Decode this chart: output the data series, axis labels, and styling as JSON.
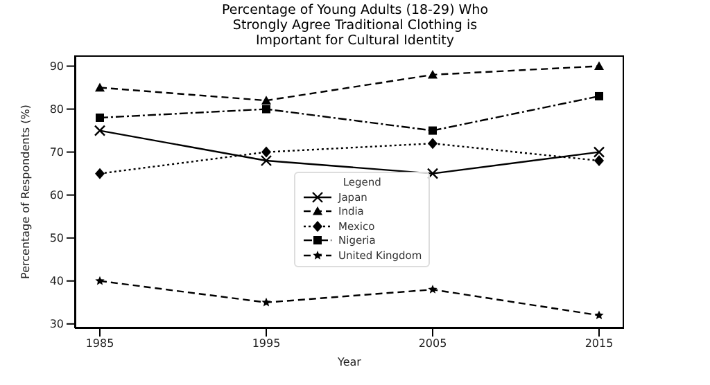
{
  "chart_data": {
    "type": "line",
    "title": "Percentage of Young Adults (18-29) Who\nStrongly Agree Traditional Clothing is\nImportant for Cultural Identity",
    "xlabel": "Year",
    "ylabel": "Percentage of Respondents (%)",
    "legend_title": "Legend",
    "legend": "bottom",
    "grid": false,
    "x": [
      1985,
      1995,
      2005,
      2015
    ],
    "xlim": [
      1983.5,
      2016.5
    ],
    "xticks": [
      1985,
      1995,
      2005,
      2015
    ],
    "ylim": [
      29,
      92.5
    ],
    "yticks": [
      30,
      40,
      50,
      60,
      70,
      80,
      90
    ],
    "series": [
      {
        "name": "Japan",
        "color": "#000000",
        "marker": "cross",
        "line_style": "solid",
        "values": [
          75,
          68,
          65,
          70
        ]
      },
      {
        "name": "India",
        "color": "#000000",
        "marker": "triangle",
        "line_style": "dashed",
        "values": [
          85,
          82,
          88,
          90
        ]
      },
      {
        "name": "Mexico",
        "color": "#000000",
        "marker": "diamond",
        "line_style": "dotted",
        "values": [
          65,
          70,
          72,
          68
        ]
      },
      {
        "name": "Nigeria",
        "color": "#000000",
        "marker": "square",
        "line_style": "dashdot",
        "values": [
          78,
          80,
          75,
          83
        ]
      },
      {
        "name": "United Kingdom",
        "color": "#000000",
        "marker": "star",
        "line_style": "dashed",
        "values": [
          40,
          35,
          38,
          32
        ]
      }
    ]
  }
}
